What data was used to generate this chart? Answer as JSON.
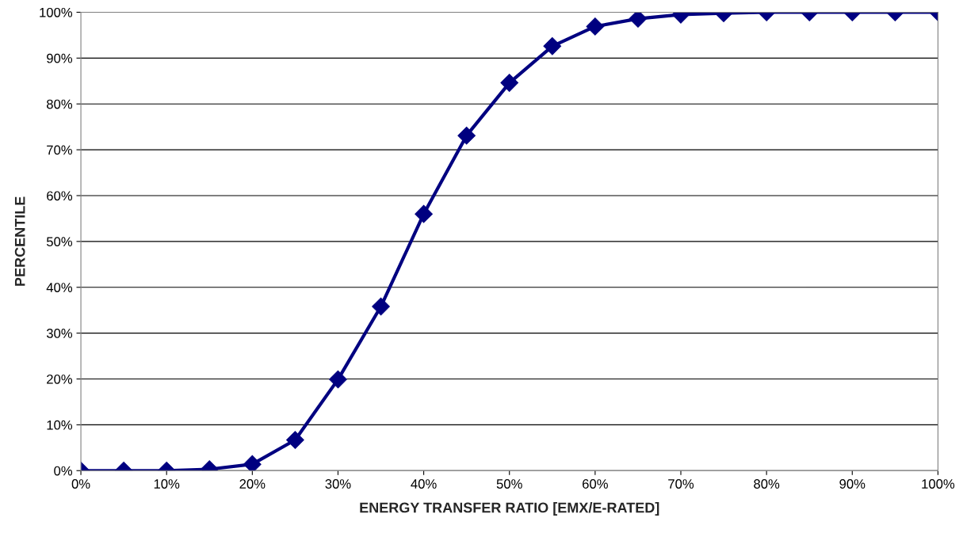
{
  "chart_data": {
    "type": "line",
    "xlabel": "ENERGY TRANSFER RATIO [EMX/E-RATED]",
    "ylabel": "PERCENTILE",
    "x": [
      0,
      5,
      10,
      15,
      20,
      25,
      30,
      35,
      40,
      45,
      50,
      55,
      60,
      65,
      70,
      75,
      80,
      85,
      90,
      95,
      100
    ],
    "series": [
      {
        "color": "#000080",
        "values": [
          0,
          0,
          0,
          0.3,
          1.4,
          6.7,
          19.9,
          35.8,
          56.0,
          73.1,
          84.6,
          92.6,
          96.9,
          98.6,
          99.5,
          99.8,
          100,
          100,
          100,
          100,
          100
        ]
      }
    ],
    "xlim": [
      0,
      100
    ],
    "xticks": [
      {
        "value": 0,
        "label": "0%"
      },
      {
        "value": 10,
        "label": "10%"
      },
      {
        "value": 20,
        "label": "20%"
      },
      {
        "value": 30,
        "label": "30%"
      },
      {
        "value": 40,
        "label": "40%"
      },
      {
        "value": 50,
        "label": "50%"
      },
      {
        "value": 60,
        "label": "60%"
      },
      {
        "value": 70,
        "label": "70%"
      },
      {
        "value": 80,
        "label": "80%"
      },
      {
        "value": 90,
        "label": "90%"
      },
      {
        "value": 100,
        "label": "100%"
      }
    ],
    "ylim": [
      0,
      100
    ],
    "yticks": [
      {
        "value": 0,
        "label": "0%"
      },
      {
        "value": 10,
        "label": "10%"
      },
      {
        "value": 20,
        "label": "20%"
      },
      {
        "value": 30,
        "label": "30%"
      },
      {
        "value": 40,
        "label": "40%"
      },
      {
        "value": 50,
        "label": "50%"
      },
      {
        "value": 60,
        "label": "60%"
      },
      {
        "value": 70,
        "label": "70%"
      },
      {
        "value": 80,
        "label": "80%"
      },
      {
        "value": 90,
        "label": "90%"
      },
      {
        "value": 100,
        "label": "100%"
      }
    ],
    "grid": "y",
    "marker": "diamond",
    "line_style": "solid",
    "legend": false
  }
}
